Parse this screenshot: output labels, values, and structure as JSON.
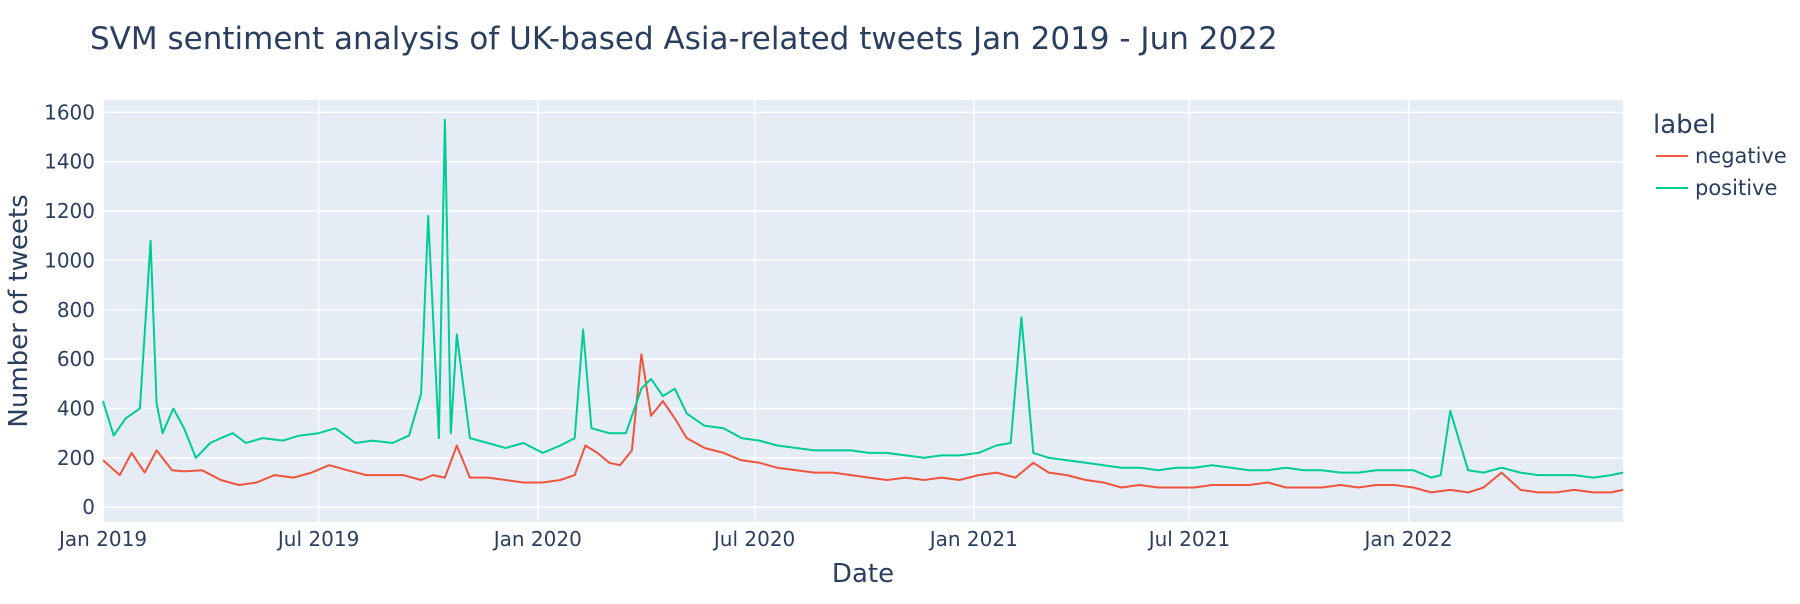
{
  "chart_data": {
    "type": "line",
    "title": "SVM sentiment analysis of UK-based Asia-related tweets Jan 2019 - Jun 2022",
    "xlabel": "Date",
    "ylabel": "Number of tweets",
    "x_range": [
      "2019-01-01",
      "2022-06-30"
    ],
    "ylim": [
      -60,
      1650
    ],
    "y_ticks": [
      0,
      200,
      400,
      600,
      800,
      1000,
      1200,
      1400,
      1600
    ],
    "x_ticks": [
      {
        "date": "2019-01-01",
        "label": "Jan 2019"
      },
      {
        "date": "2019-07-01",
        "label": "Jul 2019"
      },
      {
        "date": "2020-01-01",
        "label": "Jan 2020"
      },
      {
        "date": "2020-07-01",
        "label": "Jul 2020"
      },
      {
        "date": "2021-01-01",
        "label": "Jan 2021"
      },
      {
        "date": "2021-07-01",
        "label": "Jul 2021"
      },
      {
        "date": "2022-01-01",
        "label": "Jan 2022"
      }
    ],
    "grid": true,
    "plot_background": "#e5ecf6",
    "legend": {
      "title": "label",
      "position": "right"
    },
    "series": [
      {
        "name": "negative",
        "color": "#ef553b",
        "x": [
          "2019-01-01",
          "2019-01-15",
          "2019-01-25",
          "2019-02-05",
          "2019-02-15",
          "2019-02-28",
          "2019-03-10",
          "2019-03-25",
          "2019-04-10",
          "2019-04-25",
          "2019-05-10",
          "2019-05-25",
          "2019-06-10",
          "2019-06-25",
          "2019-07-10",
          "2019-07-25",
          "2019-08-10",
          "2019-08-25",
          "2019-09-10",
          "2019-09-25",
          "2019-10-05",
          "2019-10-15",
          "2019-10-25",
          "2019-11-05",
          "2019-11-20",
          "2019-12-05",
          "2019-12-20",
          "2020-01-05",
          "2020-01-20",
          "2020-02-01",
          "2020-02-10",
          "2020-02-20",
          "2020-03-01",
          "2020-03-10",
          "2020-03-20",
          "2020-03-28",
          "2020-04-05",
          "2020-04-15",
          "2020-04-25",
          "2020-05-05",
          "2020-05-20",
          "2020-06-05",
          "2020-06-20",
          "2020-07-05",
          "2020-07-20",
          "2020-08-05",
          "2020-08-20",
          "2020-09-05",
          "2020-09-20",
          "2020-10-05",
          "2020-10-20",
          "2020-11-05",
          "2020-11-20",
          "2020-12-05",
          "2020-12-20",
          "2021-01-05",
          "2021-01-20",
          "2021-02-05",
          "2021-02-20",
          "2021-03-05",
          "2021-03-20",
          "2021-04-05",
          "2021-04-20",
          "2021-05-05",
          "2021-05-20",
          "2021-06-05",
          "2021-06-20",
          "2021-07-05",
          "2021-07-20",
          "2021-08-05",
          "2021-08-20",
          "2021-09-05",
          "2021-09-20",
          "2021-10-05",
          "2021-10-20",
          "2021-11-05",
          "2021-11-20",
          "2021-12-05",
          "2021-12-20",
          "2022-01-05",
          "2022-01-20",
          "2022-02-05",
          "2022-02-20",
          "2022-03-05",
          "2022-03-20",
          "2022-04-05",
          "2022-04-20",
          "2022-05-05",
          "2022-05-20",
          "2022-06-05",
          "2022-06-20",
          "2022-06-30"
        ],
        "y": [
          190,
          130,
          220,
          140,
          230,
          150,
          145,
          150,
          110,
          90,
          100,
          130,
          120,
          140,
          170,
          150,
          130,
          130,
          130,
          110,
          130,
          120,
          250,
          120,
          120,
          110,
          100,
          100,
          110,
          130,
          250,
          220,
          180,
          170,
          230,
          620,
          370,
          430,
          360,
          280,
          240,
          220,
          190,
          180,
          160,
          150,
          140,
          140,
          130,
          120,
          110,
          120,
          110,
          120,
          110,
          130,
          140,
          120,
          180,
          140,
          130,
          110,
          100,
          80,
          90,
          80,
          80,
          80,
          90,
          90,
          90,
          100,
          80,
          80,
          80,
          90,
          80,
          90,
          90,
          80,
          60,
          70,
          60,
          80,
          140,
          70,
          60,
          60,
          70,
          60,
          60,
          70
        ]
      },
      {
        "name": "positive",
        "color": "#00cc96",
        "x": [
          "2019-01-01",
          "2019-01-10",
          "2019-01-20",
          "2019-02-01",
          "2019-02-10",
          "2019-02-15",
          "2019-02-20",
          "2019-03-01",
          "2019-03-10",
          "2019-03-20",
          "2019-04-01",
          "2019-04-10",
          "2019-04-20",
          "2019-05-01",
          "2019-05-15",
          "2019-06-01",
          "2019-06-15",
          "2019-07-01",
          "2019-07-15",
          "2019-08-01",
          "2019-08-15",
          "2019-09-01",
          "2019-09-15",
          "2019-09-25",
          "2019-10-01",
          "2019-10-10",
          "2019-10-15",
          "2019-10-20",
          "2019-10-25",
          "2019-11-05",
          "2019-11-20",
          "2019-12-05",
          "2019-12-20",
          "2020-01-05",
          "2020-01-20",
          "2020-02-01",
          "2020-02-08",
          "2020-02-15",
          "2020-03-01",
          "2020-03-15",
          "2020-03-28",
          "2020-04-05",
          "2020-04-15",
          "2020-04-25",
          "2020-05-05",
          "2020-05-20",
          "2020-06-05",
          "2020-06-20",
          "2020-07-05",
          "2020-07-20",
          "2020-08-05",
          "2020-08-20",
          "2020-09-05",
          "2020-09-20",
          "2020-10-05",
          "2020-10-20",
          "2020-11-05",
          "2020-11-20",
          "2020-12-05",
          "2020-12-20",
          "2021-01-05",
          "2021-01-20",
          "2021-02-01",
          "2021-02-10",
          "2021-02-20",
          "2021-03-05",
          "2021-03-20",
          "2021-04-05",
          "2021-04-20",
          "2021-05-05",
          "2021-05-20",
          "2021-06-05",
          "2021-06-20",
          "2021-07-05",
          "2021-07-20",
          "2021-08-05",
          "2021-08-20",
          "2021-09-05",
          "2021-09-20",
          "2021-10-05",
          "2021-10-20",
          "2021-11-05",
          "2021-11-20",
          "2021-12-05",
          "2021-12-20",
          "2022-01-05",
          "2022-01-20",
          "2022-01-28",
          "2022-02-05",
          "2022-02-20",
          "2022-03-05",
          "2022-03-20",
          "2022-04-05",
          "2022-04-20",
          "2022-05-05",
          "2022-05-20",
          "2022-06-05",
          "2022-06-20",
          "2022-06-30"
        ],
        "y": [
          430,
          290,
          360,
          400,
          1080,
          420,
          300,
          400,
          320,
          200,
          260,
          280,
          300,
          260,
          280,
          270,
          290,
          300,
          320,
          260,
          270,
          260,
          290,
          460,
          1180,
          280,
          1570,
          300,
          700,
          280,
          260,
          240,
          260,
          220,
          250,
          280,
          720,
          320,
          300,
          300,
          480,
          520,
          450,
          480,
          380,
          330,
          320,
          280,
          270,
          250,
          240,
          230,
          230,
          230,
          220,
          220,
          210,
          200,
          210,
          210,
          220,
          250,
          260,
          770,
          220,
          200,
          190,
          180,
          170,
          160,
          160,
          150,
          160,
          160,
          170,
          160,
          150,
          150,
          160,
          150,
          150,
          140,
          140,
          150,
          150,
          150,
          120,
          130,
          390,
          150,
          140,
          160,
          140,
          130,
          130,
          130,
          120,
          130,
          140
        ]
      }
    ]
  }
}
